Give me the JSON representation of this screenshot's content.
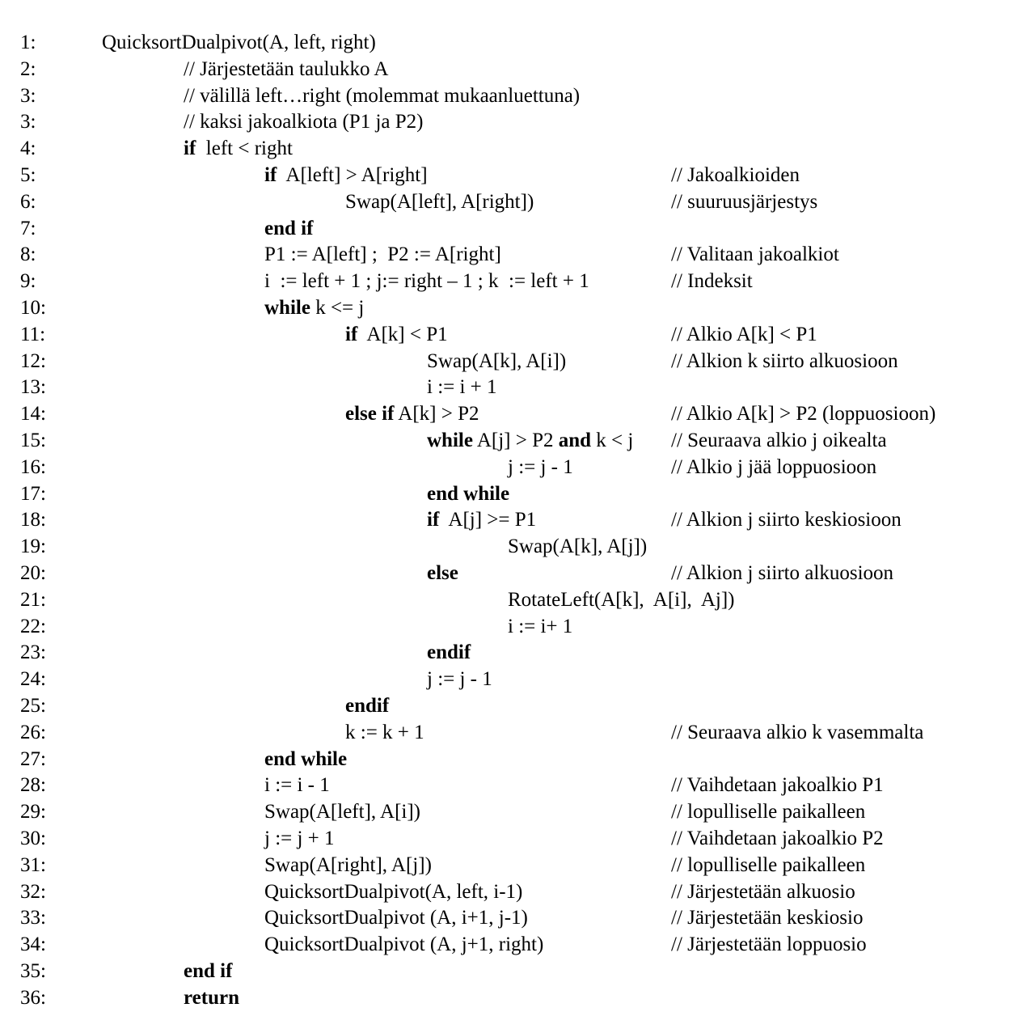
{
  "lines": [
    {
      "num": "1:",
      "indent": 0,
      "code": [
        {
          "t": "QuicksortDualpivot(A, left, right)"
        }
      ],
      "comment": ""
    },
    {
      "num": "2:",
      "indent": 1,
      "code": [
        {
          "t": "// Järjestetään taulukko A"
        }
      ],
      "comment": ""
    },
    {
      "num": "3:",
      "indent": 1,
      "code": [
        {
          "t": "// välillä left…right (molemmat mukaanluettuna)"
        }
      ],
      "comment": ""
    },
    {
      "num": "3:",
      "indent": 1,
      "code": [
        {
          "t": "// kaksi jakoalkiota (P1 ja P2)"
        }
      ],
      "comment": ""
    },
    {
      "num": "4:",
      "indent": 1,
      "code": [
        {
          "t": "if",
          "b": true
        },
        {
          "t": "  left < right"
        }
      ],
      "comment": ""
    },
    {
      "num": "5:",
      "indent": 2,
      "code": [
        {
          "t": "if",
          "b": true
        },
        {
          "t": "  A[left] > A[right]"
        }
      ],
      "comment": "// Jakoalkioiden"
    },
    {
      "num": "6:",
      "indent": 3,
      "code": [
        {
          "t": "Swap(A[left], A[right])"
        }
      ],
      "comment": "// suuruusjärjestys"
    },
    {
      "num": "7:",
      "indent": 2,
      "code": [
        {
          "t": "end if",
          "b": true
        }
      ],
      "comment": ""
    },
    {
      "num": "8:",
      "indent": 2,
      "code": [
        {
          "t": "P1 := A[left] ;  P2 := A[right]"
        }
      ],
      "comment": "// Valitaan jakoalkiot"
    },
    {
      "num": "9:",
      "indent": 2,
      "code": [
        {
          "t": "i  := left + 1 ; j:= right – 1 ; k  := left + 1"
        }
      ],
      "comment": "// Indeksit"
    },
    {
      "num": "10:",
      "indent": 2,
      "code": [
        {
          "t": "while",
          "b": true
        },
        {
          "t": " k <= j"
        }
      ],
      "comment": ""
    },
    {
      "num": "11:",
      "indent": 3,
      "code": [
        {
          "t": "if",
          "b": true
        },
        {
          "t": "  A[k] < P1"
        }
      ],
      "comment": "// Alkio A[k] < P1"
    },
    {
      "num": "12:",
      "indent": 4,
      "code": [
        {
          "t": "Swap(A[k], A[i])"
        }
      ],
      "comment": "// Alkion k siirto alkuosioon"
    },
    {
      "num": "13:",
      "indent": 4,
      "code": [
        {
          "t": "i := i + 1"
        }
      ],
      "comment": ""
    },
    {
      "num": "14:",
      "indent": 3,
      "code": [
        {
          "t": "else if",
          "b": true
        },
        {
          "t": " A[k] > P2"
        }
      ],
      "comment": "// Alkio A[k]  > P2 (loppuosioon)"
    },
    {
      "num": "15:",
      "indent": 4,
      "code": [
        {
          "t": "while",
          "b": true
        },
        {
          "t": " A[j] > P2 "
        },
        {
          "t": "and",
          "b": true
        },
        {
          "t": " k < j"
        }
      ],
      "comment": "// Seuraava alkio j oikealta"
    },
    {
      "num": "16:",
      "indent": 5,
      "code": [
        {
          "t": "j := j - 1"
        }
      ],
      "comment": "// Alkio j jää loppuosioon"
    },
    {
      "num": "17:",
      "indent": 4,
      "code": [
        {
          "t": "end while",
          "b": true
        }
      ],
      "comment": ""
    },
    {
      "num": "18:",
      "indent": 4,
      "code": [
        {
          "t": "if",
          "b": true
        },
        {
          "t": "  A[j] >= P1"
        }
      ],
      "comment": "// Alkion j siirto keskiosioon"
    },
    {
      "num": "19:",
      "indent": 5,
      "code": [
        {
          "t": "Swap(A[k], A[j])"
        }
      ],
      "comment": ""
    },
    {
      "num": "20:",
      "indent": 4,
      "code": [
        {
          "t": "else",
          "b": true
        }
      ],
      "comment": "// Alkion j siirto alkuosioon"
    },
    {
      "num": "21:",
      "indent": 5,
      "code": [
        {
          "t": "RotateLeft(A[k],  A[i],  Aj])"
        }
      ],
      "comment": ""
    },
    {
      "num": "22:",
      "indent": 5,
      "code": [
        {
          "t": "i := i+ 1"
        }
      ],
      "comment": ""
    },
    {
      "num": "23:",
      "indent": 4,
      "code": [
        {
          "t": "endif",
          "b": true
        }
      ],
      "comment": ""
    },
    {
      "num": "24:",
      "indent": 4,
      "code": [
        {
          "t": "j := j - 1"
        }
      ],
      "comment": ""
    },
    {
      "num": "25:",
      "indent": 3,
      "code": [
        {
          "t": "endif",
          "b": true
        }
      ],
      "comment": ""
    },
    {
      "num": "26:",
      "indent": 3,
      "code": [
        {
          "t": "k := k + 1"
        }
      ],
      "comment": "// Seuraava alkio k vasemmalta"
    },
    {
      "num": "27:",
      "indent": 2,
      "code": [
        {
          "t": "end while",
          "b": true
        }
      ],
      "comment": ""
    },
    {
      "num": "28:",
      "indent": 2,
      "code": [
        {
          "t": "i := i - 1"
        }
      ],
      "comment": "// Vaihdetaan jakoalkio P1"
    },
    {
      "num": "29:",
      "indent": 2,
      "code": [
        {
          "t": "Swap(A[left], A[i])"
        }
      ],
      "comment": "// lopulliselle paikalleen"
    },
    {
      "num": "30:",
      "indent": 2,
      "code": [
        {
          "t": "j := j + 1"
        }
      ],
      "comment": "// Vaihdetaan jakoalkio P2"
    },
    {
      "num": "31:",
      "indent": 2,
      "code": [
        {
          "t": "Swap(A[right], A[j])"
        }
      ],
      "comment": "// lopulliselle paikalleen"
    },
    {
      "num": "32:",
      "indent": 2,
      "code": [
        {
          "t": "QuicksortDualpivot(A, left, i-1)"
        }
      ],
      "comment": "// Järjestetään alkuosio"
    },
    {
      "num": "33:",
      "indent": 2,
      "code": [
        {
          "t": "QuicksortDualpivot (A, i+1, j-1)"
        }
      ],
      "comment": "// Järjestetään keskiosio"
    },
    {
      "num": "34:",
      "indent": 2,
      "code": [
        {
          "t": "QuicksortDualpivot (A, j+1, right)"
        }
      ],
      "comment": "// Järjestetään loppuosio"
    },
    {
      "num": "35:",
      "indent": 1,
      "code": [
        {
          "t": "end if",
          "b": true
        }
      ],
      "comment": ""
    },
    {
      "num": "36:",
      "indent": 1,
      "code": [
        {
          "t": "return",
          "b": true
        }
      ],
      "comment": ""
    }
  ]
}
